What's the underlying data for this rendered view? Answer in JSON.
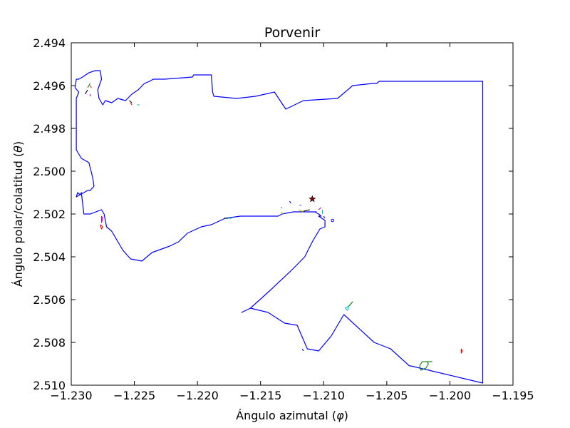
{
  "chart_data": {
    "type": "line",
    "title": "Porvenir",
    "xlabel": "Ángulo azimutal",
    "xlabel_symbol": "φ",
    "ylabel": "Ángulo polar/colatitud",
    "ylabel_symbol": "θ",
    "xlim": [
      -1.23,
      -1.195
    ],
    "ylim": [
      2.51,
      2.494
    ],
    "y_inverted": true,
    "grid": false,
    "x_ticks": [
      "−1.230",
      "−1.225",
      "−1.220",
      "−1.215",
      "−1.210",
      "−1.205",
      "−1.200",
      "−1.195"
    ],
    "x_tick_values": [
      -1.23,
      -1.225,
      -1.22,
      -1.215,
      -1.21,
      -1.205,
      -1.2,
      -1.195
    ],
    "y_ticks": [
      "2.494",
      "2.496",
      "2.498",
      "2.500",
      "2.502",
      "2.504",
      "2.506",
      "2.508",
      "2.510"
    ],
    "y_tick_values": [
      2.494,
      2.496,
      2.498,
      2.5,
      2.502,
      2.504,
      2.506,
      2.508,
      2.51
    ],
    "colors": {
      "outline": "#0000ff"
    },
    "series": [
      {
        "color": "#0000ff",
        "x": [
          -1.2297,
          -1.2296,
          -1.2294,
          -1.2291,
          -1.2286,
          -1.2281,
          -1.2277,
          -1.2276,
          -1.2279,
          -1.2278,
          -1.2275,
          -1.2273,
          -1.2268,
          -1.2263,
          -1.2257,
          -1.2252,
          -1.2247,
          -1.2242,
          -1.2238,
          -1.2235,
          -1.2226,
          -1.2204,
          -1.2203,
          -1.2198,
          -1.2194,
          -1.2189,
          -1.2188,
          -1.2187,
          -1.2169,
          -1.2154,
          -1.2139,
          -1.213,
          -1.2116,
          -1.2089,
          -1.2077,
          -1.2061,
          -1.2058,
          -1.2056,
          -1.203,
          -1.2021,
          -1.2004,
          -1.1974,
          -1.1974,
          -1.1974,
          -1.1974,
          -1.1974,
          -1.2031,
          -1.2032,
          -1.2047,
          -1.206,
          -1.2084,
          -1.2094,
          -1.2104,
          -1.2113,
          -1.2121,
          -1.2131,
          -1.2144,
          -1.2158,
          -1.2165,
          -1.2158,
          -1.2143,
          -1.2125,
          -1.2115,
          -1.2109,
          -1.2103,
          -1.2099,
          -1.2099,
          -1.2104,
          -1.2102,
          -1.2104,
          -1.2107,
          -1.2106,
          -1.211,
          -1.2114,
          -1.2117,
          -1.2124,
          -1.2133,
          -1.2136,
          -1.2145,
          -1.2156,
          -1.2166,
          -1.2178,
          -1.2189,
          -1.2197,
          -1.2208,
          -1.2215,
          -1.2222,
          -1.2236,
          -1.2244,
          -1.2253,
          -1.2259,
          -1.2263,
          -1.2268,
          -1.2272,
          -1.2273,
          -1.2274,
          -1.2276,
          -1.2285,
          -1.229,
          -1.2292,
          -1.2293,
          -1.2295,
          -1.2296,
          -1.229,
          -1.2287,
          -1.2285,
          -1.2282,
          -1.2283,
          -1.2286,
          -1.2292,
          -1.2296,
          -1.2296,
          -1.2296,
          -1.2296,
          -1.2294,
          -1.2297
        ],
        "y": [
          2.4961,
          2.4957,
          2.4957,
          2.4956,
          2.4954,
          2.4953,
          2.4953,
          2.4957,
          2.4962,
          2.4966,
          2.4969,
          2.4967,
          2.4968,
          2.4966,
          2.4967,
          2.4964,
          2.4962,
          2.4959,
          2.4958,
          2.4957,
          2.4957,
          2.4956,
          2.4955,
          2.4955,
          2.4955,
          2.4955,
          2.4963,
          2.4965,
          2.4966,
          2.4965,
          2.4963,
          2.4971,
          2.4967,
          2.4966,
          2.496,
          2.4959,
          2.4959,
          2.4958,
          2.4958,
          2.4958,
          2.4958,
          2.4958,
          2.4998,
          2.501,
          2.506,
          2.5099,
          2.5091,
          2.5091,
          2.5083,
          2.508,
          2.5067,
          2.5077,
          2.5084,
          2.5083,
          2.5072,
          2.5071,
          2.5066,
          2.5064,
          2.5066,
          2.5064,
          2.5056,
          2.5046,
          2.504,
          2.5033,
          2.5027,
          2.5026,
          2.5023,
          2.5021,
          2.5021,
          2.502,
          2.5019,
          2.5019,
          2.5019,
          2.5019,
          2.5019,
          2.5019,
          2.502,
          2.5021,
          2.5021,
          2.5021,
          2.5021,
          2.5022,
          2.5025,
          2.5026,
          2.5029,
          2.5033,
          2.5035,
          2.5038,
          2.5042,
          2.5041,
          2.5037,
          2.5033,
          2.5028,
          2.5026,
          2.5023,
          2.502,
          2.5018,
          2.502,
          2.502,
          2.501,
          2.5011,
          2.501,
          2.5012,
          2.501,
          2.5009,
          2.5009,
          2.5007,
          2.5003,
          2.4996,
          2.4994,
          2.499,
          2.4985,
          2.4978,
          2.4966,
          2.4963,
          2.4961
        ]
      },
      {
        "color": "#008000",
        "x": [
          -1.2024,
          -1.2022,
          -1.2018,
          -1.2017,
          -1.2019,
          -1.2023,
          -1.2024
        ],
        "y": [
          2.5091,
          2.5089,
          2.5089,
          2.509,
          2.5092,
          2.5093,
          2.5091
        ]
      },
      {
        "color": "#008000",
        "x": [
          -1.202,
          -1.2014
        ],
        "y": [
          2.5089,
          2.5089
        ]
      },
      {
        "color": "#ff0000",
        "x": [
          -1.1991,
          -1.199,
          -1.1991,
          -1.1991
        ],
        "y": [
          2.5083,
          2.5084,
          2.5085,
          2.5083
        ]
      },
      {
        "color": "#00bfbf",
        "x": [
          -1.2083,
          -1.208,
          -1.2081,
          -1.2083
        ],
        "y": [
          2.5064,
          2.5063,
          2.5065,
          2.5064
        ]
      },
      {
        "color": "#008000",
        "x": [
          -1.208,
          -1.2077
        ],
        "y": [
          2.5063,
          2.5061
        ]
      },
      {
        "color": "#0000ff",
        "x": [
          -1.2117,
          -1.2116
        ],
        "y": [
          2.5083,
          2.5084
        ]
      },
      {
        "color": "#bf00bf",
        "x": [
          -1.2276,
          -1.2275,
          -1.2276,
          -1.2276
        ],
        "y": [
          2.5021,
          2.5022,
          2.5024,
          2.5021
        ]
      },
      {
        "color": "#ff0000",
        "x": [
          -1.2277,
          -1.2275,
          -1.2276,
          -1.2277
        ],
        "y": [
          2.5025,
          2.5026,
          2.5027,
          2.5025
        ]
      },
      {
        "color": "#000000",
        "x": [
          -1.2179,
          -1.2175
        ],
        "y": [
          2.5022,
          2.5022
        ]
      },
      {
        "color": "#00bfbf",
        "x": [
          -1.2176,
          -1.2173
        ],
        "y": [
          2.5022,
          2.5022
        ]
      },
      {
        "color": "#000000",
        "x": [
          -1.2118,
          -1.2111
        ],
        "y": [
          2.5019,
          2.5018
        ]
      },
      {
        "color": "#bfbf00",
        "x": [
          -1.212,
          -1.2116
        ],
        "y": [
          2.5018,
          2.5019
        ]
      },
      {
        "color": "#bf00bf",
        "x": [
          -1.2104,
          -1.2102
        ],
        "y": [
          2.5018,
          2.5017
        ]
      },
      {
        "color": "#00bfbf",
        "x": [
          -1.2101,
          -1.2101
        ],
        "y": [
          2.5018,
          2.502
        ]
      },
      {
        "color": "#0000ff",
        "x": [
          -1.21,
          -1.2099
        ],
        "y": [
          2.5021,
          2.5022
        ]
      },
      {
        "color": "#0000ff",
        "x": [
          -1.2119,
          -1.2118
        ],
        "y": [
          2.5016,
          2.5016
        ]
      },
      {
        "color": "#0000ff",
        "x": [
          -1.2127,
          -1.2126
        ],
        "y": [
          2.5014,
          2.5015
        ]
      },
      {
        "color": "#008000",
        "x": [
          -1.2134,
          -1.2133
        ],
        "y": [
          2.5017,
          2.5017
        ]
      },
      {
        "color": "#bfbf00",
        "x": [
          -1.2134,
          -1.2132
        ],
        "y": [
          2.5019,
          2.502
        ]
      },
      {
        "color": "#008000",
        "x": [
          -1.2287,
          -1.2285
        ],
        "y": [
          2.4961,
          2.4959
        ]
      },
      {
        "color": "#000000",
        "x": [
          -1.2289,
          -1.2287
        ],
        "y": [
          2.4964,
          2.4962
        ]
      },
      {
        "color": "#ff0000",
        "x": [
          -1.2285,
          -1.2284
        ],
        "y": [
          2.496,
          2.4961
        ]
      },
      {
        "color": "#bf00bf",
        "x": [
          -1.2285,
          -1.2285
        ],
        "y": [
          2.4964,
          2.4965
        ]
      },
      {
        "color": "#000000",
        "x": [
          -1.2254,
          -1.2252
        ],
        "y": [
          2.4967,
          2.4968
        ]
      },
      {
        "color": "#ff0000",
        "x": [
          -1.2253,
          -1.2252
        ],
        "y": [
          2.4968,
          2.4969
        ]
      },
      {
        "color": "#00bfbf",
        "x": [
          -1.2248,
          -1.2246
        ],
        "y": [
          2.4969,
          2.4969
        ]
      }
    ],
    "markers": [
      {
        "x": -1.2109,
        "y": 2.5013,
        "symbol": "star",
        "color": "#8b0000"
      },
      {
        "x": -1.2093,
        "y": 2.5023,
        "symbol": "circle",
        "color": "#0000ff"
      }
    ]
  }
}
